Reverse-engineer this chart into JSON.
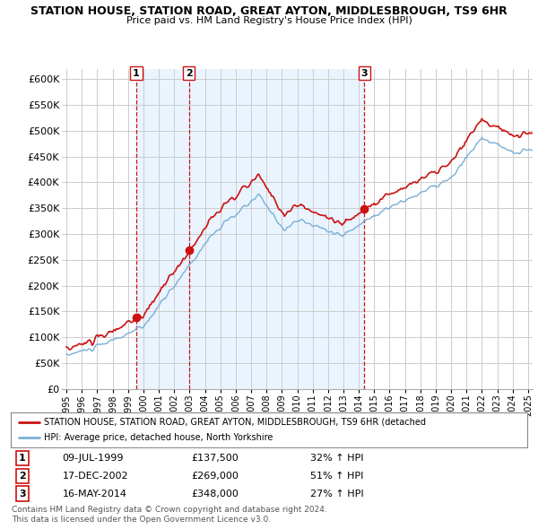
{
  "title": "STATION HOUSE, STATION ROAD, GREAT AYTON, MIDDLESBROUGH, TS9 6HR",
  "subtitle": "Price paid vs. HM Land Registry's House Price Index (HPI)",
  "legend_line1": "STATION HOUSE, STATION ROAD, GREAT AYTON, MIDDLESBROUGH, TS9 6HR (detached",
  "legend_line2": "HPI: Average price, detached house, North Yorkshire",
  "footer1": "Contains HM Land Registry data © Crown copyright and database right 2024.",
  "footer2": "This data is licensed under the Open Government Licence v3.0.",
  "transactions": [
    {
      "label": "1",
      "date": "09-JUL-1999",
      "price": "£137,500",
      "change": "32% ↑ HPI",
      "year": 1999.54
    },
    {
      "label": "2",
      "date": "17-DEC-2002",
      "price": "£269,000",
      "change": "51% ↑ HPI",
      "year": 2002.96
    },
    {
      "label": "3",
      "date": "16-MAY-2014",
      "price": "£348,000",
      "change": "27% ↑ HPI",
      "year": 2014.37
    }
  ],
  "transaction_values": [
    137500,
    269000,
    348000
  ],
  "hpi_color": "#7aafd4",
  "price_color": "#cc1111",
  "marker_color": "#cc1111",
  "vline_color": "#cc1111",
  "shade_color": "#ddeeff",
  "background_color": "#ffffff",
  "grid_color": "#cccccc",
  "ylim": [
    0,
    620000
  ],
  "yticks": [
    0,
    50000,
    100000,
    150000,
    200000,
    250000,
    300000,
    350000,
    400000,
    450000,
    500000,
    550000,
    600000
  ],
  "xlim_start": 1994.7,
  "xlim_end": 2025.3
}
